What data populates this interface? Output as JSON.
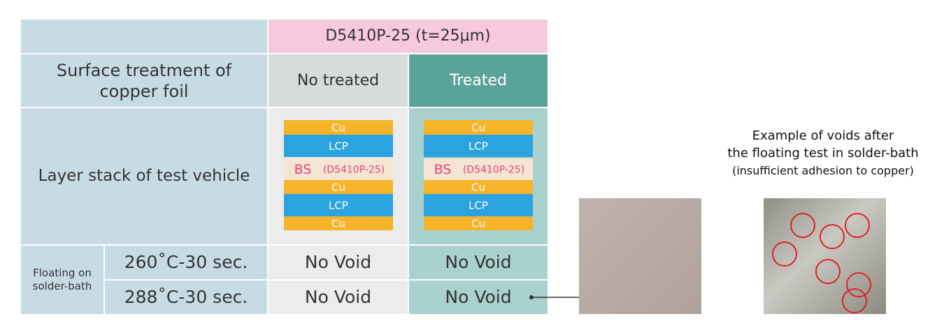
{
  "table": {
    "header": "D5410P-25 (t=25μm)",
    "row_labels": [
      "Surface treatment of copper foil",
      "Layer stack of test vehicle"
    ],
    "columns": [
      "No treated",
      "Treated"
    ],
    "group_label": "Floating on solder-bath",
    "conditions": [
      "260˚C-30 sec.",
      "288˚C-30 sec."
    ],
    "results": [
      [
        "No Void",
        "No Void"
      ],
      [
        "No Void",
        "No Void"
      ]
    ]
  },
  "stacks": [
    {
      "layers": [
        "Cu",
        "LCP",
        {
          "label": "BS",
          "note": "(D5410P-25)"
        },
        "Cu",
        "LCP",
        "Cu"
      ]
    },
    {
      "layers": [
        "Cu",
        "LCP",
        {
          "label": "BS",
          "note": "(D5410P-25)"
        },
        "Cu",
        "LCP",
        "Cu"
      ]
    }
  ],
  "caption": [
    "Example of voids after",
    "the floating test in solder-bath",
    "(insufficient adhesion to copper)"
  ]
}
